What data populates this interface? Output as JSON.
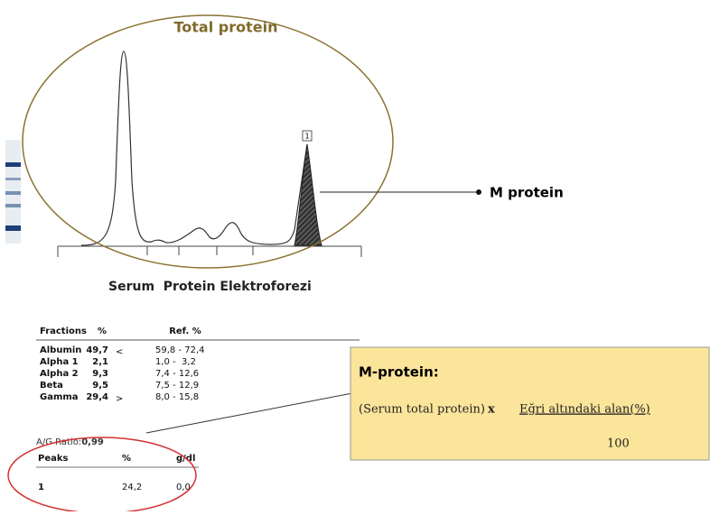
{
  "header": {
    "title": "Total protein"
  },
  "peak_marker": "1",
  "callout": "M protein",
  "chart_title": "Serum  Protein Elektroforezi",
  "fractions": {
    "headers": [
      "Fractions",
      "%",
      "Ref. %"
    ],
    "rows": [
      {
        "name": "Albumin",
        "percent": "49,7",
        "flag": "<",
        "ref": "59,8 - 72,4"
      },
      {
        "name": "Alpha 1",
        "percent": "2,1",
        "ref": "1,0 -  3,2"
      },
      {
        "name": "Alpha 2",
        "percent": "9,3",
        "ref": "7,4 - 12,6"
      },
      {
        "name": "Beta",
        "percent": "9,5",
        "ref": "7,5 - 12,9"
      },
      {
        "name": "Gamma",
        "percent": "29,4",
        "flag": ">",
        "ref": "8,0 - 15,8"
      }
    ]
  },
  "ag_ratio": {
    "label": "A/G Ratio:",
    "value": "0,99"
  },
  "peaks": {
    "headers": [
      "Peaks",
      "%",
      "g/dl"
    ],
    "rows": [
      [
        "1",
        "24,2",
        "0,0"
      ]
    ]
  },
  "formula": {
    "title": "M-protein:",
    "numerator_left": "(Serum total protein)",
    "operator": "x",
    "numerator_right": "Eğri altındaki alan(%)",
    "denominator": "100"
  }
}
